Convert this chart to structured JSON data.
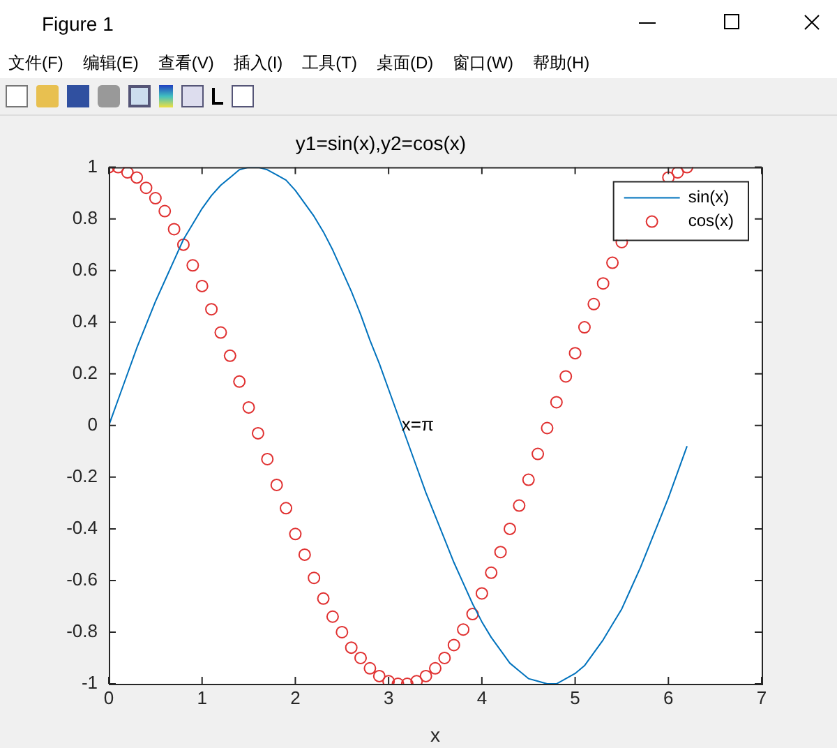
{
  "chart_data": {
    "type": "line",
    "title": "y1=sin(x),y2=cos(x)",
    "xlabel": "x",
    "annotations": [
      "Figure 1",
      "文件(F)",
      "编辑(E)",
      "查看(V)",
      "插入(I)",
      "工具(T)",
      "桌面(D)",
      "窗口(W)",
      "帮助(H)",
      {
        "text": "x=π",
        "x": 3.14,
        "y": 0
      }
    ],
    "x": [
      0,
      0.1,
      0.2,
      0.3,
      0.4,
      0.5,
      0.6,
      0.7,
      0.8,
      0.9,
      1.0,
      1.1,
      1.2,
      1.3,
      1.4,
      1.5,
      1.6,
      1.7,
      1.8,
      1.9,
      2.0,
      2.1,
      2.2,
      2.3,
      2.4,
      2.5,
      2.6,
      2.7,
      2.8,
      2.9,
      3.0,
      3.1,
      3.2,
      3.3,
      3.4,
      3.5,
      3.6,
      3.7,
      3.8,
      3.9,
      4.0,
      4.1,
      4.2,
      4.3,
      4.4,
      4.5,
      4.6,
      4.7,
      4.8,
      4.9,
      5.0,
      5.1,
      5.2,
      5.3,
      5.4,
      5.5,
      5.6,
      5.7,
      5.8,
      5.9,
      6.0,
      6.1,
      6.2
    ],
    "series": [
      {
        "name": "sin(x)",
        "type": "line",
        "color": "#0072bd",
        "marker": "none",
        "line_style": "solid",
        "values": [
          0,
          0.1,
          0.2,
          0.3,
          0.39,
          0.48,
          0.56,
          0.64,
          0.72,
          0.78,
          0.84,
          0.89,
          0.93,
          0.96,
          0.99,
          1.0,
          1.0,
          0.99,
          0.97,
          0.95,
          0.91,
          0.86,
          0.81,
          0.75,
          0.68,
          0.6,
          0.52,
          0.43,
          0.33,
          0.24,
          0.14,
          0.04,
          -0.06,
          -0.16,
          -0.26,
          -0.35,
          -0.44,
          -0.53,
          -0.61,
          -0.69,
          -0.76,
          -0.82,
          -0.87,
          -0.92,
          -0.95,
          -0.98,
          -0.99,
          -1.0,
          -1.0,
          -0.98,
          -0.96,
          -0.93,
          -0.88,
          -0.83,
          -0.77,
          -0.71,
          -0.63,
          -0.55,
          -0.46,
          -0.37,
          -0.28,
          -0.18,
          -0.08
        ]
      },
      {
        "name": "cos(x)",
        "type": "scatter",
        "color": "#e03030",
        "marker": "circle",
        "values": [
          1.0,
          1.0,
          0.98,
          0.96,
          0.92,
          0.88,
          0.83,
          0.76,
          0.7,
          0.62,
          0.54,
          0.45,
          0.36,
          0.27,
          0.17,
          0.07,
          -0.03,
          -0.13,
          -0.23,
          -0.32,
          -0.42,
          -0.5,
          -0.59,
          -0.67,
          -0.74,
          -0.8,
          -0.86,
          -0.9,
          -0.94,
          -0.97,
          -0.99,
          -1.0,
          -1.0,
          -0.99,
          -0.97,
          -0.94,
          -0.9,
          -0.85,
          -0.79,
          -0.73,
          -0.65,
          -0.57,
          -0.49,
          -0.4,
          -0.31,
          -0.21,
          -0.11,
          -0.01,
          0.09,
          0.19,
          0.28,
          0.38,
          0.47,
          0.55,
          0.63,
          0.71,
          null,
          null,
          null,
          null,
          0.96,
          0.98,
          1.0
        ]
      }
    ],
    "xlim": [
      0,
      7
    ],
    "xticks": [
      0,
      1,
      2,
      3,
      4,
      5,
      6,
      7
    ],
    "ylim": [
      -1,
      1
    ],
    "yticks": [
      -1,
      -0.8,
      -0.6,
      -0.4,
      -0.2,
      0,
      0.2,
      0.4,
      0.6,
      0.8,
      1
    ],
    "grid": false,
    "legend": "top right"
  }
}
